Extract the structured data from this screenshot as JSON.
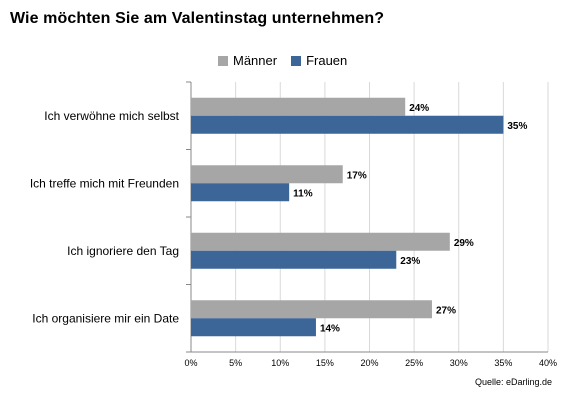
{
  "chart_data": {
    "type": "bar",
    "orientation": "horizontal",
    "title": "Wie möchten Sie am Valentinstag unternehmen?",
    "categories": [
      "Ich verwöhne mich selbst",
      "Ich treffe mich mit Freunden",
      "Ich ignoriere den Tag",
      "Ich organisiere mir ein Date"
    ],
    "series": [
      {
        "name": "Männer",
        "color": "#a6a6a6",
        "values": [
          24,
          17,
          29,
          27
        ]
      },
      {
        "name": "Frauen",
        "color": "#3c6598",
        "values": [
          35,
          11,
          23,
          14
        ]
      }
    ],
    "value_suffix": "%",
    "xlim": [
      0,
      40
    ],
    "xticks": [
      "0%",
      "5%",
      "10%",
      "15%",
      "20%",
      "25%",
      "30%",
      "35%",
      "40%"
    ],
    "grid": true,
    "legend_position": "top",
    "source": "Quelle: eDarling.de"
  }
}
